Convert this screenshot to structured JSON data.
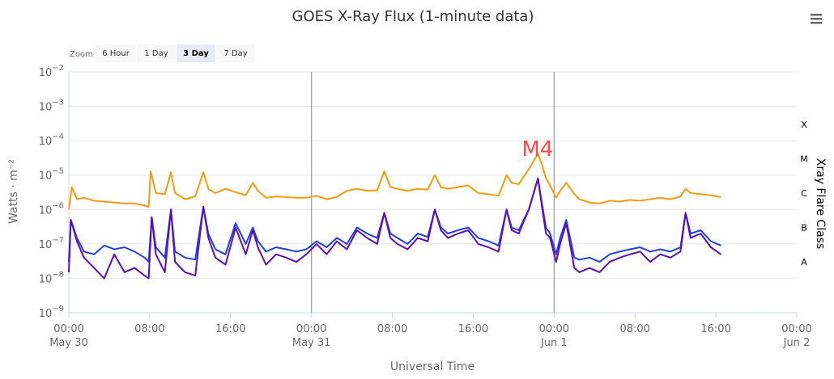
{
  "chart_data": {
    "type": "line",
    "title": "GOES X-Ray Flux (1-minute data)",
    "xlabel": "Universal Time",
    "ylabel": "Watts · m⁻²",
    "y2label": "Xray Flare Class",
    "y_scale": "log",
    "ylim": [
      1e-09,
      0.01
    ],
    "xlim": [
      "2024-05-30T00:00",
      "2024-06-02T00:00"
    ],
    "y_ticks": [
      {
        "base": "10",
        "exp": "−9",
        "value": 1e-09
      },
      {
        "base": "10",
        "exp": "−8",
        "value": 1e-08
      },
      {
        "base": "10",
        "exp": "−7",
        "value": 1e-07
      },
      {
        "base": "10",
        "exp": "−6",
        "value": 1e-06
      },
      {
        "base": "10",
        "exp": "−5",
        "value": 1e-05
      },
      {
        "base": "10",
        "exp": "−4",
        "value": 0.0001
      },
      {
        "base": "10",
        "exp": "−3",
        "value": 0.001
      },
      {
        "base": "10",
        "exp": "−2",
        "value": 0.01
      }
    ],
    "x_ticks": [
      {
        "time": "00:00",
        "date": "May 30",
        "hours": 0
      },
      {
        "time": "08:00",
        "date": "",
        "hours": 8
      },
      {
        "time": "16:00",
        "date": "",
        "hours": 16
      },
      {
        "time": "00:00",
        "date": "May 31",
        "hours": 24
      },
      {
        "time": "08:00",
        "date": "",
        "hours": 32
      },
      {
        "time": "16:00",
        "date": "",
        "hours": 40
      },
      {
        "time": "00:00",
        "date": "Jun 1",
        "hours": 48
      },
      {
        "time": "08:00",
        "date": "",
        "hours": 56
      },
      {
        "time": "16:00",
        "date": "",
        "hours": 64
      },
      {
        "time": "00:00",
        "date": "Jun 2",
        "hours": 72
      }
    ],
    "day_lines_hours": [
      24,
      48
    ],
    "flare_classes": [
      {
        "label": "A",
        "value": 3e-08
      },
      {
        "label": "B",
        "value": 3e-07
      },
      {
        "label": "C",
        "value": 3e-06
      },
      {
        "label": "M",
        "value": 3e-05
      },
      {
        "label": "X",
        "value": 0.0003
      }
    ],
    "annotations": [
      {
        "text": "M4",
        "hours": 47,
        "value": 5e-05
      }
    ],
    "grid": true,
    "series": [
      {
        "color": "#f39c12",
        "points": [
          [
            0,
            1e-06
          ],
          [
            0.3,
            4.5e-06
          ],
          [
            0.8,
            2e-06
          ],
          [
            1.5,
            2.2e-06
          ],
          [
            2.5,
            1.8e-06
          ],
          [
            3.5,
            1.7e-06
          ],
          [
            4.5,
            1.6e-06
          ],
          [
            5.5,
            1.5e-06
          ],
          [
            6.5,
            1.5e-06
          ],
          [
            7.5,
            1.3e-06
          ],
          [
            7.9,
            1.2e-06
          ],
          [
            8.1,
            1.3e-05
          ],
          [
            8.6,
            3e-06
          ],
          [
            9.5,
            2.8e-06
          ],
          [
            10.1,
            1.2e-05
          ],
          [
            10.5,
            3e-06
          ],
          [
            11.5,
            2e-06
          ],
          [
            12.5,
            2.4e-06
          ],
          [
            13.3,
            1.2e-05
          ],
          [
            13.8,
            4e-06
          ],
          [
            14.5,
            3e-06
          ],
          [
            15.5,
            4e-06
          ],
          [
            16.5,
            3.2e-06
          ],
          [
            17.5,
            2.6e-06
          ],
          [
            18.2,
            6e-06
          ],
          [
            18.7,
            3.5e-06
          ],
          [
            19.5,
            2.2e-06
          ],
          [
            20.5,
            2.4e-06
          ],
          [
            21.5,
            2.3e-06
          ],
          [
            22.5,
            2.2e-06
          ],
          [
            23.5,
            2.2e-06
          ],
          [
            24.5,
            2.5e-06
          ],
          [
            25.5,
            2e-06
          ],
          [
            26.5,
            2.3e-06
          ],
          [
            27.5,
            3.5e-06
          ],
          [
            28.5,
            4e-06
          ],
          [
            29.5,
            3.5e-06
          ],
          [
            30.5,
            3.6e-06
          ],
          [
            31.2,
            1.3e-05
          ],
          [
            31.8,
            4.5e-06
          ],
          [
            32.5,
            4e-06
          ],
          [
            33.5,
            3.5e-06
          ],
          [
            34.5,
            4e-06
          ],
          [
            35.5,
            3.8e-06
          ],
          [
            36.2,
            1e-05
          ],
          [
            36.8,
            4.5e-06
          ],
          [
            37.5,
            4e-06
          ],
          [
            38.5,
            4.5e-06
          ],
          [
            39.5,
            5e-06
          ],
          [
            40.5,
            3e-06
          ],
          [
            41.5,
            2.8e-06
          ],
          [
            42.5,
            2.5e-06
          ],
          [
            43.3,
            1e-05
          ],
          [
            43.8,
            6e-06
          ],
          [
            44.5,
            5.5e-06
          ],
          [
            45.5,
            1.5e-05
          ],
          [
            46.4,
            4.2e-05
          ],
          [
            46.8,
            2e-05
          ],
          [
            47.2,
            8e-06
          ],
          [
            47.6,
            5e-06
          ],
          [
            48.2,
            2.2e-06
          ],
          [
            48.6,
            3.5e-06
          ],
          [
            49.2,
            6e-06
          ],
          [
            50,
            2.8e-06
          ],
          [
            50.5,
            2e-06
          ],
          [
            51.5,
            1.6e-06
          ],
          [
            52.5,
            1.5e-06
          ],
          [
            53.5,
            1.8e-06
          ],
          [
            54.5,
            1.7e-06
          ],
          [
            55.5,
            1.9e-06
          ],
          [
            56.5,
            1.8e-06
          ],
          [
            57.5,
            2e-06
          ],
          [
            58.5,
            2.2e-06
          ],
          [
            59.5,
            2e-06
          ],
          [
            60.5,
            2.4e-06
          ],
          [
            61,
            4e-06
          ],
          [
            61.5,
            3e-06
          ],
          [
            62.5,
            2.8e-06
          ],
          [
            63.5,
            2.6e-06
          ],
          [
            64.5,
            2.3e-06
          ]
        ]
      },
      {
        "color": "#1f3fe6",
        "points": [
          [
            0,
            3e-08
          ],
          [
            0.2,
            5e-07
          ],
          [
            0.8,
            1.5e-07
          ],
          [
            1.5,
            6e-08
          ],
          [
            2.5,
            5e-08
          ],
          [
            3.5,
            9e-08
          ],
          [
            4.5,
            7e-08
          ],
          [
            5.5,
            8e-08
          ],
          [
            6.5,
            6e-08
          ],
          [
            7.5,
            4e-08
          ],
          [
            7.9,
            3e-08
          ],
          [
            8.2,
            6e-07
          ],
          [
            8.6,
            8e-08
          ],
          [
            9.5,
            4e-08
          ],
          [
            10.1,
            1e-06
          ],
          [
            10.5,
            6e-08
          ],
          [
            11.5,
            4e-08
          ],
          [
            12.5,
            3.5e-08
          ],
          [
            13.3,
            1.2e-06
          ],
          [
            13.8,
            2e-07
          ],
          [
            14.5,
            7e-08
          ],
          [
            15.5,
            5e-08
          ],
          [
            16.5,
            4e-07
          ],
          [
            17.5,
            1e-07
          ],
          [
            18.2,
            3e-07
          ],
          [
            18.7,
            1.2e-07
          ],
          [
            19.5,
            6e-08
          ],
          [
            20.5,
            8e-08
          ],
          [
            21.5,
            7e-08
          ],
          [
            22.5,
            6e-08
          ],
          [
            23.5,
            7e-08
          ],
          [
            24.5,
            1.2e-07
          ],
          [
            25.5,
            8e-08
          ],
          [
            26.5,
            1.5e-07
          ],
          [
            27.5,
            1e-07
          ],
          [
            28.5,
            3e-07
          ],
          [
            29.5,
            2e-07
          ],
          [
            30.5,
            1.5e-07
          ],
          [
            31.2,
            8e-07
          ],
          [
            31.8,
            2e-07
          ],
          [
            32.5,
            1.5e-07
          ],
          [
            33.5,
            1e-07
          ],
          [
            34.5,
            2e-07
          ],
          [
            35.5,
            1.6e-07
          ],
          [
            36.2,
            1e-06
          ],
          [
            36.8,
            3e-07
          ],
          [
            37.5,
            2e-07
          ],
          [
            38.5,
            2.5e-07
          ],
          [
            39.5,
            3e-07
          ],
          [
            40.5,
            1.5e-07
          ],
          [
            41.5,
            1.2e-07
          ],
          [
            42.5,
            9e-08
          ],
          [
            43.3,
            1e-06
          ],
          [
            43.8,
            3e-07
          ],
          [
            44.5,
            2.5e-07
          ],
          [
            45.5,
            1e-06
          ],
          [
            46.4,
            8e-06
          ],
          [
            46.8,
            1.5e-06
          ],
          [
            47.2,
            3e-07
          ],
          [
            47.6,
            2e-07
          ],
          [
            48.2,
            5e-08
          ],
          [
            48.6,
            1.5e-07
          ],
          [
            49.2,
            5e-07
          ],
          [
            50,
            4e-08
          ],
          [
            50.5,
            3.5e-08
          ],
          [
            51.5,
            4e-08
          ],
          [
            52.5,
            3e-08
          ],
          [
            53.5,
            5e-08
          ],
          [
            54.5,
            6e-08
          ],
          [
            55.5,
            7e-08
          ],
          [
            56.5,
            8e-08
          ],
          [
            57.5,
            6e-08
          ],
          [
            58.5,
            7e-08
          ],
          [
            59.5,
            6e-08
          ],
          [
            60.5,
            8e-08
          ],
          [
            61,
            8e-07
          ],
          [
            61.5,
            2e-07
          ],
          [
            62.5,
            2.5e-07
          ],
          [
            63.5,
            1.2e-07
          ],
          [
            64.5,
            9e-08
          ]
        ]
      },
      {
        "color": "#5b0fb5",
        "points": [
          [
            0,
            1.5e-08
          ],
          [
            0.2,
            5e-07
          ],
          [
            0.8,
            1.2e-07
          ],
          [
            1.5,
            4e-08
          ],
          [
            2.5,
            2e-08
          ],
          [
            3.5,
            1e-08
          ],
          [
            4.5,
            5e-08
          ],
          [
            5.5,
            1.5e-08
          ],
          [
            6.5,
            2e-08
          ],
          [
            7.5,
            1.2e-08
          ],
          [
            7.9,
            1e-08
          ],
          [
            8.2,
            6e-07
          ],
          [
            8.6,
            5e-08
          ],
          [
            9.5,
            1.5e-08
          ],
          [
            10.1,
            1e-06
          ],
          [
            10.5,
            3e-08
          ],
          [
            11.5,
            1.5e-08
          ],
          [
            12.5,
            1.2e-08
          ],
          [
            13.3,
            1.2e-06
          ],
          [
            13.8,
            1.5e-07
          ],
          [
            14.5,
            4e-08
          ],
          [
            15.5,
            2.5e-08
          ],
          [
            16.5,
            3e-07
          ],
          [
            17.5,
            5e-08
          ],
          [
            18.2,
            2.5e-07
          ],
          [
            18.7,
            8e-08
          ],
          [
            19.5,
            2.5e-08
          ],
          [
            20.5,
            5e-08
          ],
          [
            21.5,
            4e-08
          ],
          [
            22.5,
            3e-08
          ],
          [
            23.5,
            5e-08
          ],
          [
            24.5,
            1e-07
          ],
          [
            25.5,
            5e-08
          ],
          [
            26.5,
            1.2e-07
          ],
          [
            27.5,
            7e-08
          ],
          [
            28.5,
            2.5e-07
          ],
          [
            29.5,
            1.5e-07
          ],
          [
            30.5,
            1e-07
          ],
          [
            31.2,
            8e-07
          ],
          [
            31.8,
            1.5e-07
          ],
          [
            32.5,
            1e-07
          ],
          [
            33.5,
            7e-08
          ],
          [
            34.5,
            1.5e-07
          ],
          [
            35.5,
            1.2e-07
          ],
          [
            36.2,
            1e-06
          ],
          [
            36.8,
            2.5e-07
          ],
          [
            37.5,
            1.5e-07
          ],
          [
            38.5,
            2e-07
          ],
          [
            39.5,
            2.5e-07
          ],
          [
            40.5,
            1e-07
          ],
          [
            41.5,
            8e-08
          ],
          [
            42.5,
            6e-08
          ],
          [
            43.3,
            1e-06
          ],
          [
            43.8,
            2.5e-07
          ],
          [
            44.5,
            2e-07
          ],
          [
            45.5,
            1e-06
          ],
          [
            46.4,
            8e-06
          ],
          [
            46.8,
            1.2e-06
          ],
          [
            47.2,
            2e-07
          ],
          [
            47.6,
            1.5e-07
          ],
          [
            48.2,
            3e-08
          ],
          [
            48.6,
            1e-07
          ],
          [
            49.2,
            4e-07
          ],
          [
            50,
            2e-08
          ],
          [
            50.5,
            1.5e-08
          ],
          [
            51.5,
            2e-08
          ],
          [
            52.5,
            1.5e-08
          ],
          [
            53.5,
            3e-08
          ],
          [
            54.5,
            4e-08
          ],
          [
            55.5,
            5e-08
          ],
          [
            56.5,
            6e-08
          ],
          [
            57.5,
            3e-08
          ],
          [
            58.5,
            5e-08
          ],
          [
            59.5,
            4e-08
          ],
          [
            60.5,
            6e-08
          ],
          [
            61,
            8e-07
          ],
          [
            61.5,
            1.5e-07
          ],
          [
            62.5,
            2e-07
          ],
          [
            63.5,
            8e-08
          ],
          [
            64.5,
            5e-08
          ]
        ]
      }
    ]
  },
  "controls": {
    "zoom_label": "Zoom",
    "buttons": [
      {
        "label": "6 Hour",
        "active": false
      },
      {
        "label": "1 Day",
        "active": false
      },
      {
        "label": "3 Day",
        "active": true
      },
      {
        "label": "7 Day",
        "active": false
      }
    ],
    "menu_icon": "hamburger-menu-icon"
  },
  "colors": {
    "grid": "#e6e6e6",
    "day_line": "#999999",
    "button_bg": "#f7f7f7",
    "button_active_bg": "#e6ebf5"
  }
}
